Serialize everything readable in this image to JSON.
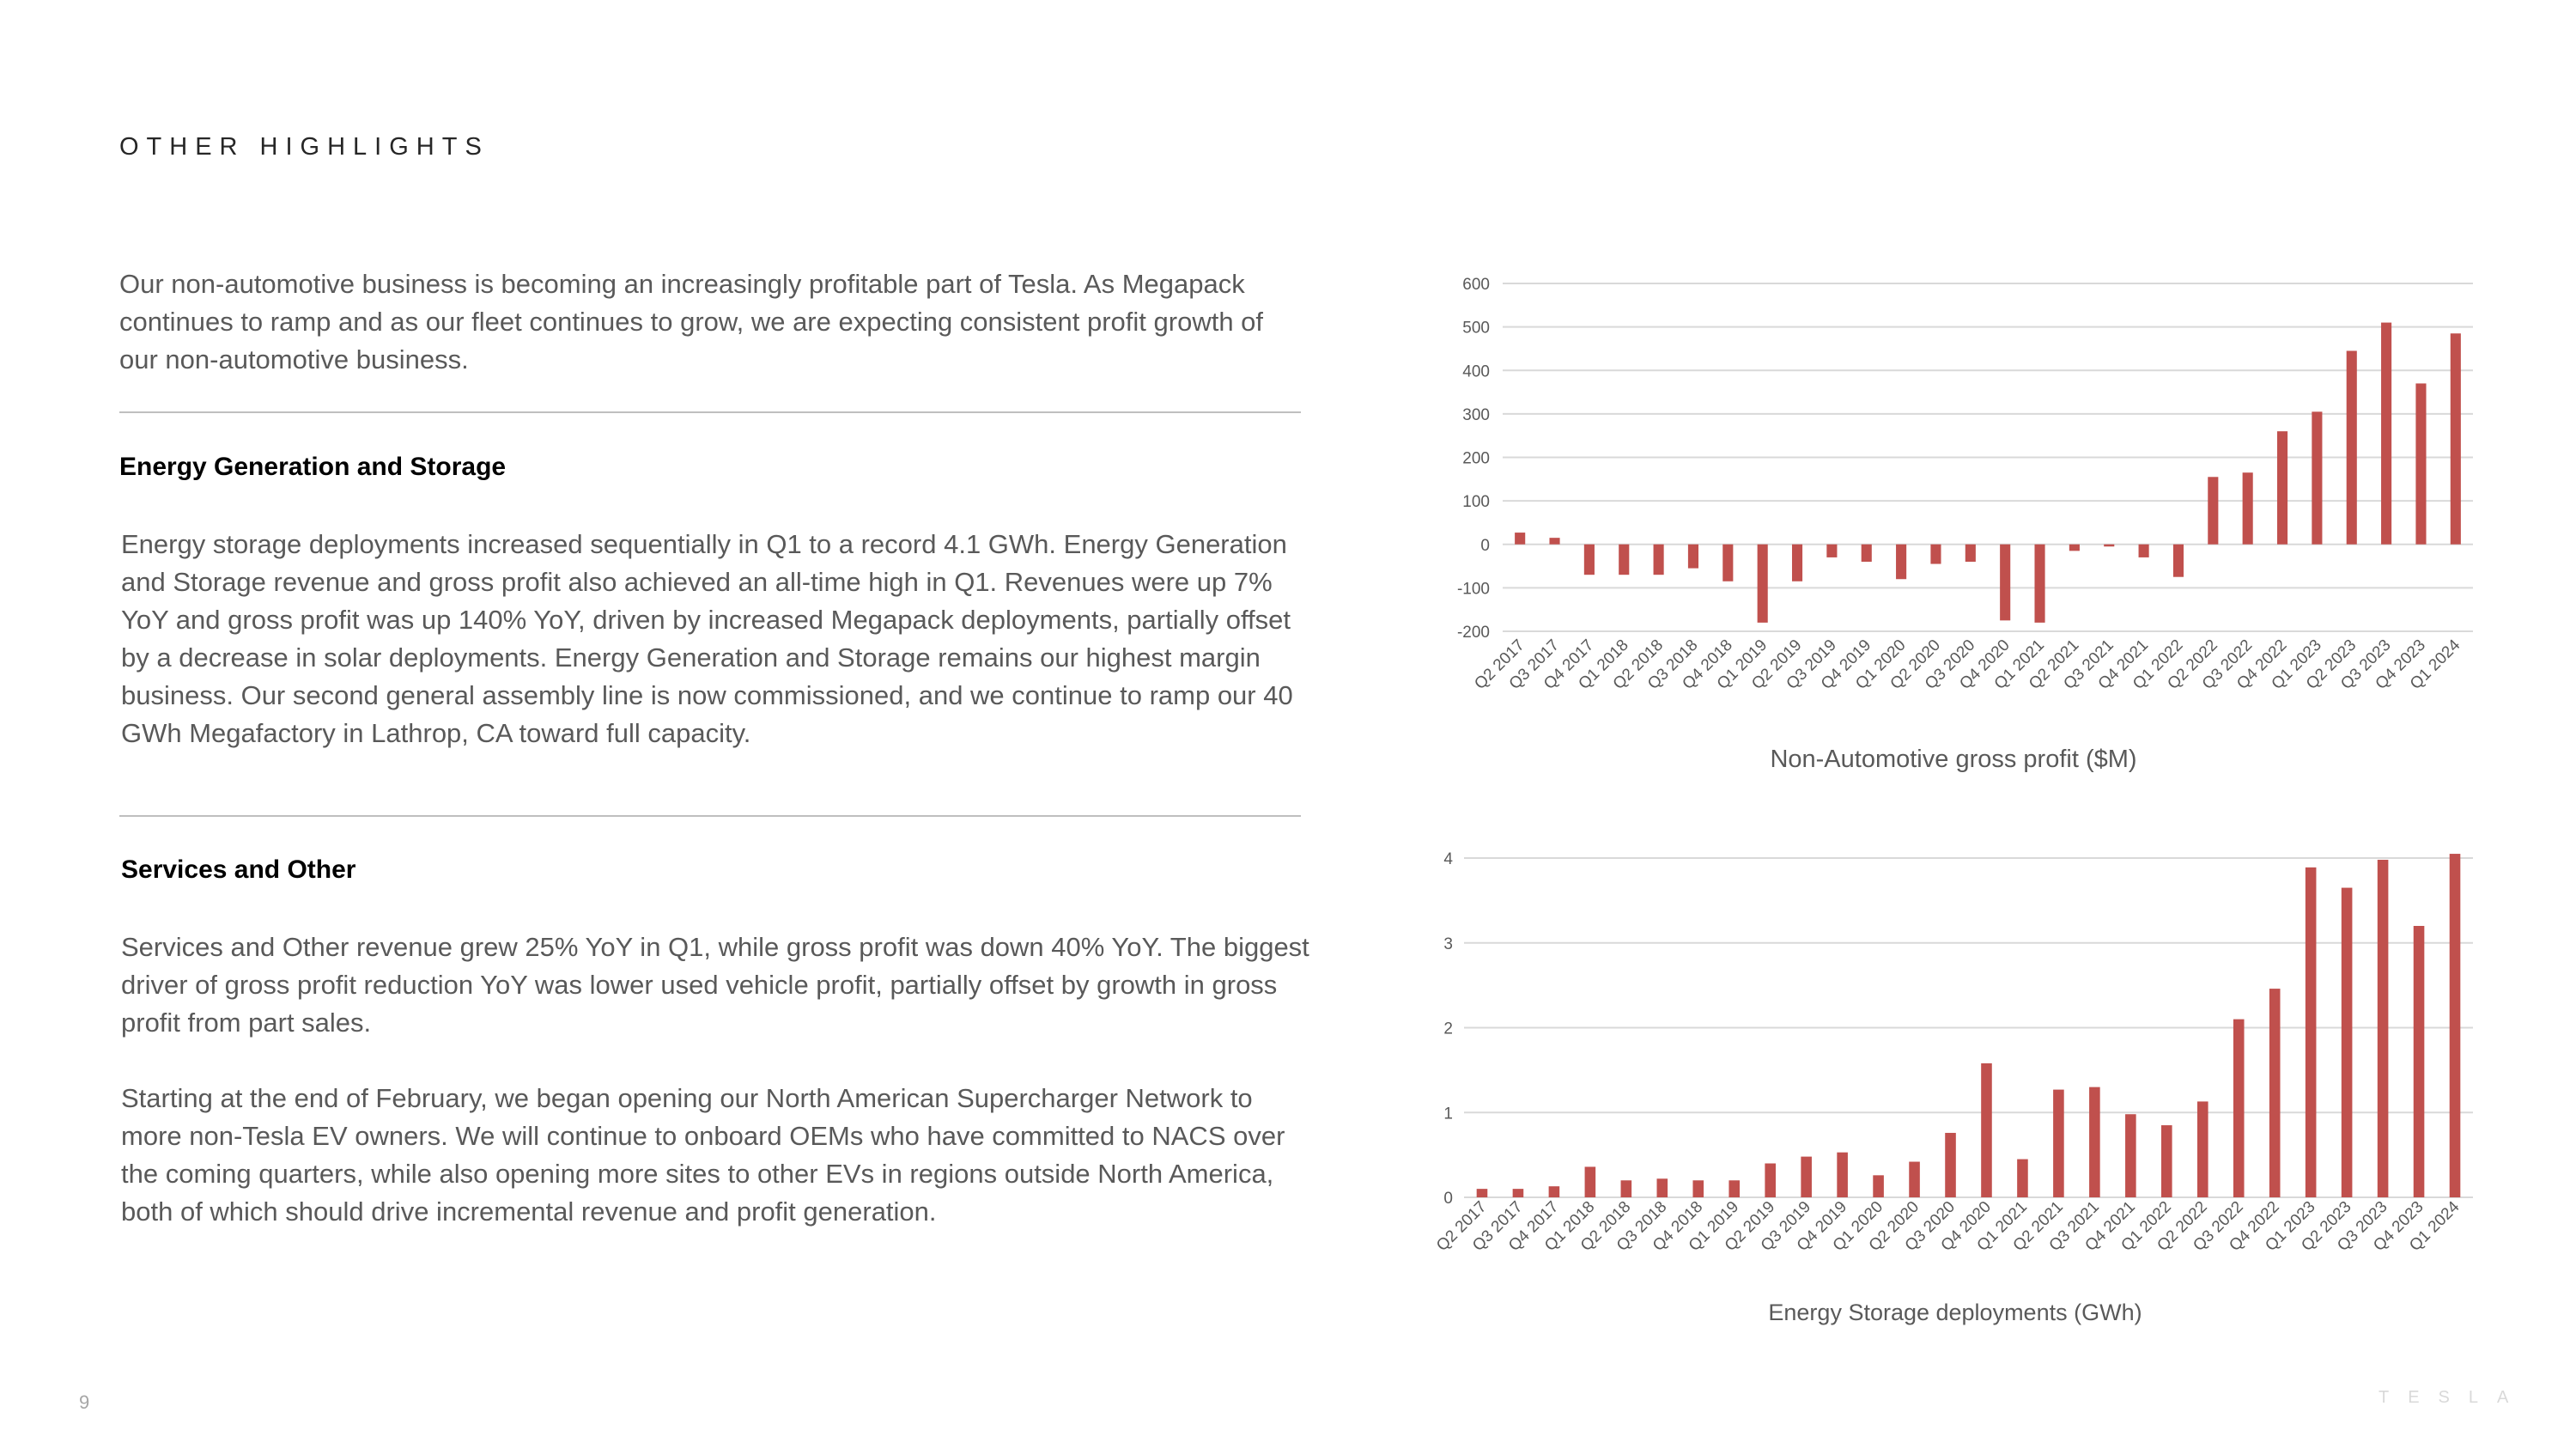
{
  "header": {
    "title": "OTHER HIGHLIGHTS"
  },
  "intro": "Our non-automotive business is becoming an increasingly profitable part of Tesla. As Megapack continues to ramp and as our fleet continues to grow, we are expecting consistent profit growth of our non-automotive business.",
  "sections": [
    {
      "heading": "Energy Generation and Storage",
      "paragraphs": [
        "Energy storage deployments increased sequentially in Q1 to a record 4.1 GWh. Energy Generation and Storage revenue and gross profit also achieved an all-time high in Q1. Revenues were up 7% YoY and gross profit was up 140% YoY, driven by increased Megapack deployments, partially offset by a decrease in solar deployments. Energy Generation and Storage remains our highest margin business. Our second general assembly line is now commissioned, and we continue to ramp our 40 GWh Megafactory in Lathrop, CA toward full capacity."
      ]
    },
    {
      "heading": "Services and Other",
      "paragraphs": [
        "Services and Other revenue grew 25% YoY in Q1, while gross profit was down 40% YoY. The biggest driver of gross profit reduction YoY was lower used vehicle profit, partially offset by growth in gross profit from part sales.",
        "Starting at the end of February, we began opening our North American Supercharger Network to more non-Tesla EV owners. We will continue to onboard OEMs who have committed to NACS over the coming quarters, while also opening more sites to other EVs in regions outside North America, both of which should drive incremental revenue and profit generation."
      ]
    }
  ],
  "chart_data": [
    {
      "type": "bar",
      "title": "Non-Automotive gross profit ($M)",
      "categories": [
        "Q2 2017",
        "Q3 2017",
        "Q4 2017",
        "Q1 2018",
        "Q2 2018",
        "Q3 2018",
        "Q4 2018",
        "Q1 2019",
        "Q2 2019",
        "Q3 2019",
        "Q4 2019",
        "Q1 2020",
        "Q2 2020",
        "Q3 2020",
        "Q4 2020",
        "Q1 2021",
        "Q2 2021",
        "Q3 2021",
        "Q4 2021",
        "Q1 2022",
        "Q2 2022",
        "Q3 2022",
        "Q4 2022",
        "Q1 2023",
        "Q2 2023",
        "Q3 2023",
        "Q4 2023",
        "Q1 2024"
      ],
      "values": [
        27,
        15,
        -70,
        -70,
        -70,
        -55,
        -85,
        -180,
        -85,
        -30,
        -40,
        -80,
        -45,
        -40,
        -175,
        -180,
        -15,
        -5,
        -30,
        -75,
        155,
        165,
        260,
        305,
        445,
        510,
        370,
        485
      ],
      "color": "#c0504d",
      "ylim": [
        -200,
        600
      ],
      "yticks": [
        -200,
        -100,
        0,
        100,
        200,
        300,
        400,
        500,
        600
      ],
      "grid": true
    },
    {
      "type": "bar",
      "title": "Energy Storage deployments (GWh)",
      "categories": [
        "Q2 2017",
        "Q3 2017",
        "Q4 2017",
        "Q1 2018",
        "Q2 2018",
        "Q3 2018",
        "Q4 2018",
        "Q1 2019",
        "Q2 2019",
        "Q3 2019",
        "Q4 2019",
        "Q1 2020",
        "Q2 2020",
        "Q3 2020",
        "Q4 2020",
        "Q1 2021",
        "Q2 2021",
        "Q3 2021",
        "Q4 2021",
        "Q1 2022",
        "Q2 2022",
        "Q3 2022",
        "Q4 2022",
        "Q1 2023",
        "Q2 2023",
        "Q3 2023",
        "Q4 2023",
        "Q1 2024"
      ],
      "values": [
        0.1,
        0.1,
        0.13,
        0.36,
        0.2,
        0.22,
        0.2,
        0.2,
        0.4,
        0.48,
        0.53,
        0.26,
        0.42,
        0.76,
        1.58,
        0.45,
        1.27,
        1.3,
        0.98,
        0.85,
        1.13,
        2.1,
        2.46,
        3.89,
        3.65,
        3.98,
        3.2,
        4.05
      ],
      "color": "#c0504d",
      "ylim": [
        0,
        4
      ],
      "yticks": [
        0,
        1,
        2,
        3,
        4
      ],
      "grid": true
    }
  ],
  "footer": {
    "page": "9",
    "logo": "TESLA"
  }
}
